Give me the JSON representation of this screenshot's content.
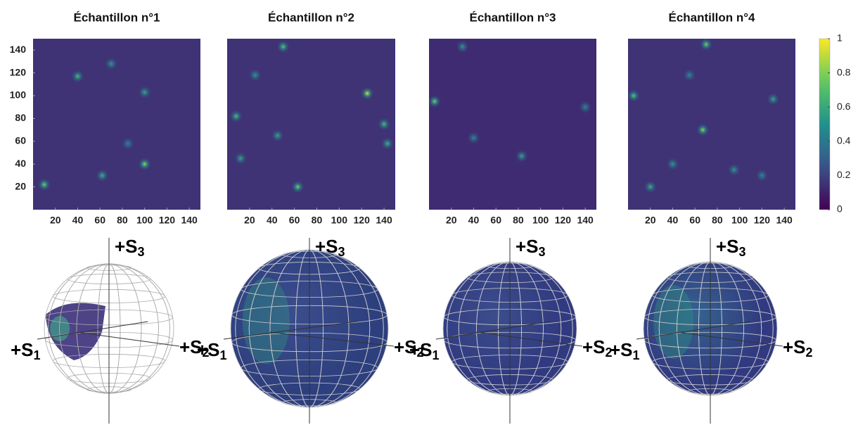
{
  "chart_data": [
    {
      "type": "heatmap",
      "title": "Échantillon n°1",
      "xlim": [
        0,
        150
      ],
      "ylim": [
        0,
        150
      ],
      "xticks": [
        20,
        40,
        60,
        80,
        100,
        120,
        140
      ],
      "yticks": [
        20,
        40,
        60,
        80,
        100,
        120,
        140
      ],
      "background": 0.15,
      "peaks": {
        "x": [
          10,
          40,
          62,
          100,
          100,
          70,
          85
        ],
        "y": [
          22,
          117,
          30,
          40,
          103,
          128,
          58
        ],
        "values": [
          0.8,
          0.7,
          0.65,
          0.85,
          0.6,
          0.55,
          0.5
        ]
      }
    },
    {
      "type": "heatmap",
      "title": "Échantillon n°2",
      "xlim": [
        0,
        150
      ],
      "ylim": [
        0,
        150
      ],
      "xticks": [
        20,
        40,
        60,
        80,
        100,
        120,
        140
      ],
      "background": 0.15,
      "peaks": {
        "x": [
          50,
          125,
          8,
          63,
          12,
          45,
          140,
          143,
          25
        ],
        "y": [
          143,
          102,
          82,
          20,
          45,
          65,
          75,
          58,
          118
        ],
        "values": [
          0.75,
          0.95,
          0.7,
          0.8,
          0.6,
          0.6,
          0.7,
          0.65,
          0.55
        ]
      }
    },
    {
      "type": "heatmap",
      "title": "Échantillon n°3",
      "xlim": [
        0,
        150
      ],
      "ylim": [
        0,
        150
      ],
      "xticks": [
        20,
        40,
        60,
        80,
        100,
        120,
        140
      ],
      "background": 0.13,
      "peaks": {
        "x": [
          5,
          83,
          30,
          40,
          140
        ],
        "y": [
          95,
          47,
          143,
          63,
          90
        ],
        "values": [
          0.8,
          0.6,
          0.55,
          0.5,
          0.5
        ]
      }
    },
    {
      "type": "heatmap",
      "title": "Échantillon n°4",
      "xlim": [
        0,
        150
      ],
      "ylim": [
        0,
        150
      ],
      "xticks": [
        20,
        40,
        60,
        80,
        100,
        120,
        140
      ],
      "background": 0.15,
      "peaks": {
        "x": [
          67,
          5,
          70,
          55,
          20,
          40,
          95,
          130,
          120
        ],
        "y": [
          70,
          100,
          145,
          118,
          20,
          40,
          35,
          97,
          30
        ],
        "values": [
          0.85,
          0.75,
          0.8,
          0.5,
          0.65,
          0.55,
          0.55,
          0.6,
          0.5
        ]
      },
      "zlim": [
        0,
        1
      ],
      "zticks": [
        0,
        0.2,
        0.4,
        0.6,
        0.8,
        1
      ]
    }
  ],
  "spheres": [
    {
      "labels": [
        {
          "prefix": "+S",
          "sub": "1"
        },
        {
          "prefix": "+S",
          "sub": "2"
        },
        {
          "prefix": "+S",
          "sub": "3"
        }
      ]
    },
    {
      "labels": [
        {
          "prefix": "+S",
          "sub": "1"
        },
        {
          "prefix": "+S",
          "sub": "2"
        },
        {
          "prefix": "+S",
          "sub": "3"
        }
      ]
    },
    {
      "labels": [
        {
          "prefix": "+S",
          "sub": "1"
        },
        {
          "prefix": "+S",
          "sub": "2"
        },
        {
          "prefix": "+S",
          "sub": "3"
        }
      ]
    },
    {
      "labels": [
        {
          "prefix": "+S",
          "sub": "1"
        },
        {
          "prefix": "+S",
          "sub": "2"
        },
        {
          "prefix": "+S",
          "sub": "3"
        }
      ]
    }
  ]
}
